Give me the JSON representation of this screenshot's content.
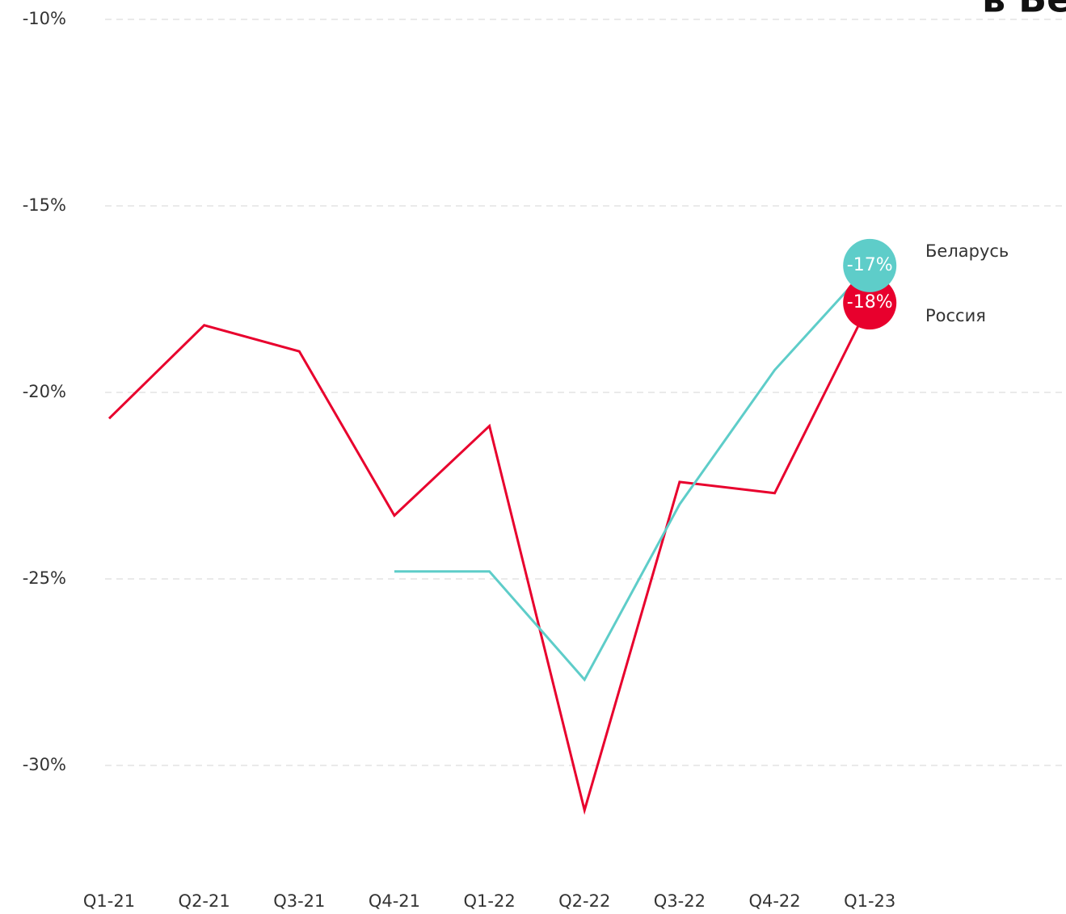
{
  "chart_data": {
    "type": "line",
    "title": "в Бе",
    "categories": [
      "Q1-21",
      "Q2-21",
      "Q3-21",
      "Q4-21",
      "Q1-22",
      "Q2-22",
      "Q3-22",
      "Q4-22",
      "Q1-23"
    ],
    "series": [
      {
        "name": "Россия",
        "color": "#e8002d",
        "values": [
          -20.7,
          -18.2,
          -18.9,
          -23.3,
          -20.9,
          -31.2,
          -22.4,
          -22.7,
          -17.6
        ],
        "value_labels": [
          null,
          null,
          null,
          null,
          null,
          null,
          null,
          null,
          "-18%"
        ]
      },
      {
        "name": "Беларусь",
        "color": "#5ecdc9",
        "values": [
          null,
          null,
          null,
          -24.8,
          -24.8,
          -27.7,
          -23.0,
          -19.4,
          -16.6
        ],
        "value_labels": [
          null,
          null,
          null,
          null,
          null,
          null,
          null,
          null,
          "-17%"
        ]
      }
    ],
    "ylim": [
      -10,
      -33.5
    ],
    "yticks": [
      {
        "value": -10,
        "label": "-10%"
      },
      {
        "value": -15,
        "label": "-15%"
      },
      {
        "value": -20,
        "label": "-20%"
      },
      {
        "value": -25,
        "label": "-25%"
      },
      {
        "value": -30,
        "label": "-30%"
      }
    ],
    "grid": true
  }
}
